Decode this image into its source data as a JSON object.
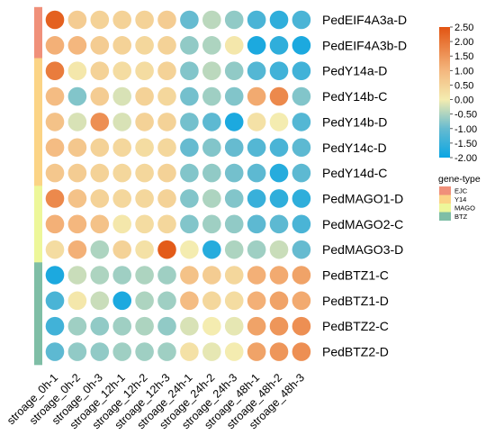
{
  "chart_data": {
    "type": "heatmap",
    "style": "bubble-grid",
    "grid": false,
    "legend_position": "right",
    "rows": [
      "PedEIF4A3a-D",
      "PedEIF4A3b-D",
      "PedY14a-D",
      "PedY14b-C",
      "PedY14b-D",
      "PedY14c-D",
      "PedY14d-C",
      "PedMAGO1-D",
      "PedMAGO2-C",
      "PedMAGO3-D",
      "PedBTZ1-C",
      "PedBTZ1-D",
      "PedBTZ2-C",
      "PedBTZ2-D"
    ],
    "columns": [
      "stroage_0h-1",
      "stroage_0h-2",
      "stroage_0h-3",
      "stroage_12h-1",
      "stroage_12h-2",
      "stroage_12h-3",
      "stroage_24h-1",
      "stroage_24h-2",
      "stroage_24h-3",
      "stroage_48h-1",
      "stroage_48h-2",
      "stroage_48h-3"
    ],
    "values": [
      [
        2.3,
        0.6,
        0.5,
        0.5,
        0.5,
        0.6,
        -1.0,
        -0.4,
        -0.7,
        -1.3,
        -1.6,
        -1.3
      ],
      [
        1.1,
        1.0,
        0.6,
        0.5,
        0.4,
        0.5,
        -0.7,
        -0.5,
        0.1,
        -1.8,
        -1.6,
        -1.8
      ],
      [
        1.9,
        0.1,
        0.5,
        0.3,
        0.3,
        0.5,
        -0.8,
        -0.4,
        -0.7,
        -1.2,
        -1.4,
        -1.4
      ],
      [
        0.9,
        -0.8,
        0.6,
        -0.2,
        0.5,
        0.4,
        -0.9,
        -0.6,
        -0.8,
        1.2,
        1.7,
        -0.8
      ],
      [
        0.8,
        -0.2,
        1.6,
        -0.2,
        0.5,
        0.5,
        -0.9,
        -1.1,
        -1.8,
        0.2,
        0.0,
        -1.2
      ],
      [
        0.9,
        0.7,
        0.5,
        0.4,
        0.3,
        0.4,
        -1.0,
        -0.8,
        -1.0,
        -1.2,
        -1.3,
        -1.1
      ],
      [
        0.7,
        0.6,
        0.5,
        0.4,
        0.4,
        0.5,
        -0.8,
        -0.7,
        -0.9,
        -1.1,
        -1.7,
        -1.1
      ],
      [
        1.7,
        0.8,
        0.5,
        0.4,
        0.4,
        0.5,
        -0.8,
        -0.5,
        -0.8,
        -1.5,
        -1.6,
        -1.6
      ],
      [
        1.1,
        1.0,
        0.8,
        0.1,
        0.3,
        0.4,
        -0.8,
        -0.6,
        -0.7,
        -1.1,
        -1.1,
        -1.3
      ],
      [
        0.3,
        1.1,
        -0.5,
        0.5,
        0.2,
        2.4,
        0.0,
        -1.7,
        -0.5,
        -0.6,
        -0.3,
        -1.0
      ],
      [
        -1.8,
        -0.3,
        -0.5,
        -0.6,
        -0.5,
        -0.6,
        0.8,
        0.6,
        0.4,
        1.1,
        1.2,
        1.3
      ],
      [
        -1.3,
        0.1,
        -0.3,
        -1.8,
        -0.5,
        -0.6,
        0.9,
        0.4,
        0.3,
        1.1,
        1.3,
        1.2
      ],
      [
        -1.4,
        -0.6,
        -0.7,
        -0.6,
        -0.5,
        -0.7,
        -0.2,
        0.0,
        -0.1,
        1.3,
        1.5,
        1.6
      ],
      [
        -1.1,
        -0.7,
        -0.7,
        -0.6,
        -0.6,
        -0.6,
        0.2,
        -0.1,
        0.0,
        1.3,
        1.5,
        1.6
      ]
    ],
    "row_groups": [
      "EJC",
      "EJC",
      "Y14",
      "Y14",
      "Y14",
      "Y14",
      "Y14",
      "MAGO",
      "MAGO",
      "MAGO",
      "BTZ",
      "BTZ",
      "BTZ",
      "BTZ"
    ],
    "color_scale": {
      "min": -2.0,
      "max": 2.5,
      "ticks": [
        "2.50",
        "2.00",
        "1.50",
        "1.00",
        "0.50",
        "0.00",
        "-0.50",
        "-1.00",
        "-1.50",
        "-2.00"
      ],
      "stops": [
        {
          "value": -2.0,
          "color": "#0aa5e3"
        },
        {
          "value": -1.0,
          "color": "#66bbd0"
        },
        {
          "value": 0.0,
          "color": "#f4ecb0"
        },
        {
          "value": 1.0,
          "color": "#f4b77e"
        },
        {
          "value": 2.5,
          "color": "#e25412"
        }
      ]
    },
    "annotation_legend": {
      "title": "gene-type",
      "items": [
        {
          "label": "EJC",
          "color": "#f0907a"
        },
        {
          "label": "Y14",
          "color": "#fbd486"
        },
        {
          "label": "MAGO",
          "color": "#edf79a"
        },
        {
          "label": "BTZ",
          "color": "#7fbea6"
        }
      ]
    }
  }
}
